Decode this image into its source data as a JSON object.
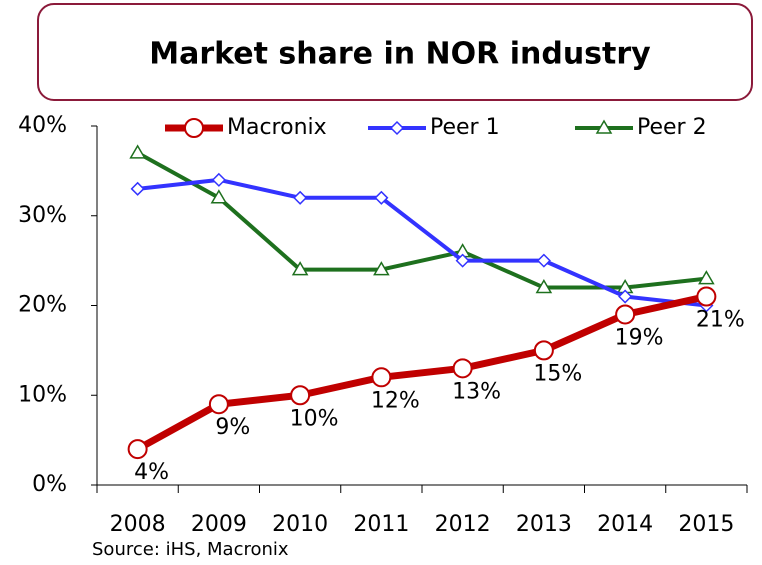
{
  "chart_data": {
    "type": "line",
    "title": "Market share in NOR industry",
    "categories": [
      "2008",
      "2009",
      "2010",
      "2011",
      "2012",
      "2013",
      "2014",
      "2015"
    ],
    "series": [
      {
        "name": "Macronix",
        "color": "#c00000",
        "marker": "circle",
        "values": [
          4,
          9,
          10,
          12,
          13,
          15,
          19,
          21
        ],
        "value_labels": [
          "4%",
          "9%",
          "10%",
          "12%",
          "13%",
          "15%",
          "19%",
          "21%"
        ]
      },
      {
        "name": "Peer 1",
        "color": "#3333ff",
        "marker": "diamond",
        "values": [
          33,
          34,
          32,
          32,
          25,
          25,
          21,
          20
        ]
      },
      {
        "name": "Peer 2",
        "color": "#1e701e",
        "marker": "triangle",
        "values": [
          37,
          32,
          24,
          24,
          26,
          22,
          22,
          23
        ]
      }
    ],
    "ylim": [
      0,
      40
    ],
    "yticks": [
      {
        "value": 0,
        "label": "0%"
      },
      {
        "value": 10,
        "label": "10%"
      },
      {
        "value": 20,
        "label": "20%"
      },
      {
        "value": 30,
        "label": "30%"
      },
      {
        "value": 40,
        "label": "40%"
      }
    ],
    "legend": "top",
    "grid": false,
    "source": "Source: iHS, Macronix"
  }
}
